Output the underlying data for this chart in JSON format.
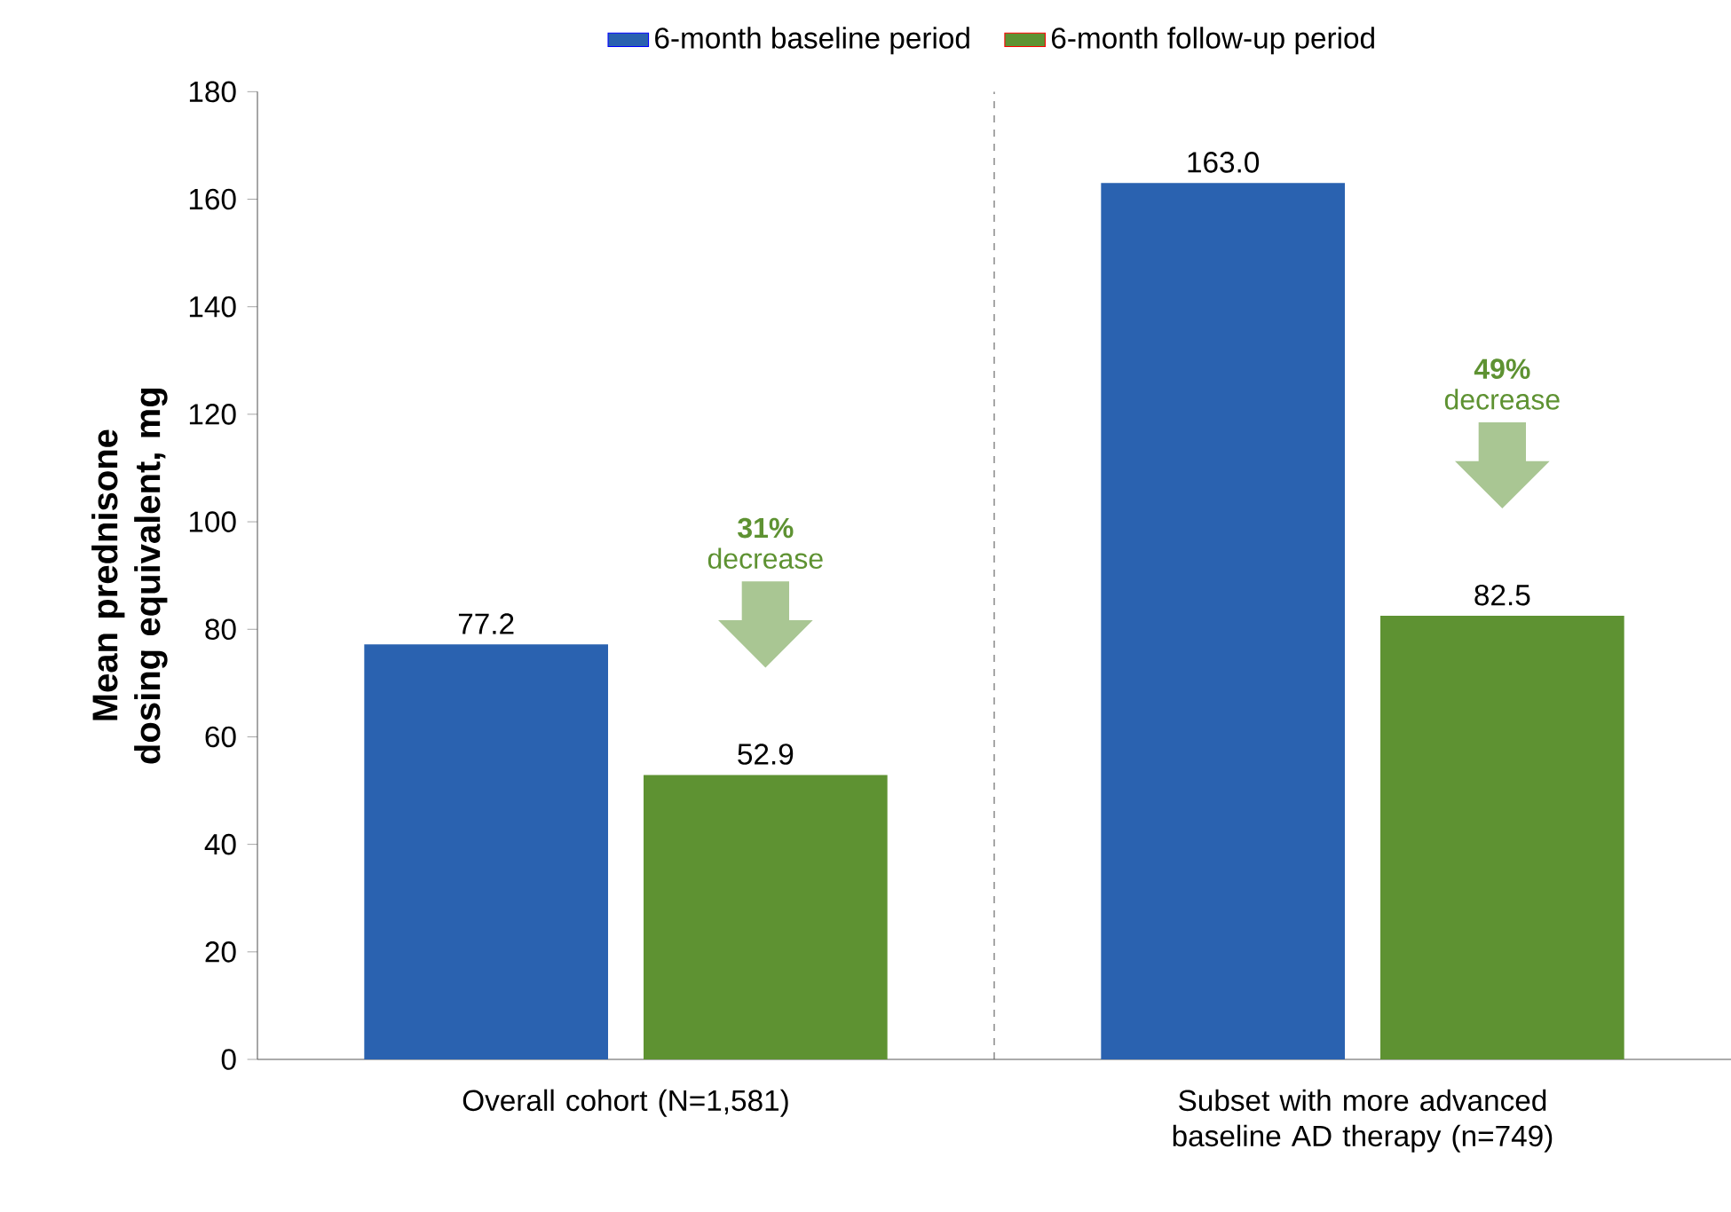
{
  "chart_data": {
    "type": "bar",
    "ylabel": "Mean prednisone dosing equivalent, mg",
    "categories": [
      "Overall cohort (N=1,581)",
      "Subset with more advanced baseline AD therapy (n=749)"
    ],
    "series": [
      {
        "name": "6-month baseline period",
        "color": "#2a62b0",
        "values": [
          77.2,
          163.0
        ],
        "value_labels": [
          "77.2",
          "163.0"
        ]
      },
      {
        "name": "6-month follow-up period",
        "color": "#5e9232",
        "values": [
          52.9,
          82.5
        ],
        "value_labels": [
          "52.9",
          "82.5"
        ]
      }
    ],
    "ylim": [
      0,
      180
    ],
    "yticks": [
      0,
      20,
      40,
      60,
      80,
      100,
      120,
      140,
      160,
      180
    ],
    "grid": false,
    "legend": "top",
    "annotations": [
      "**31%** decrease",
      "**49%** decrease"
    ]
  }
}
